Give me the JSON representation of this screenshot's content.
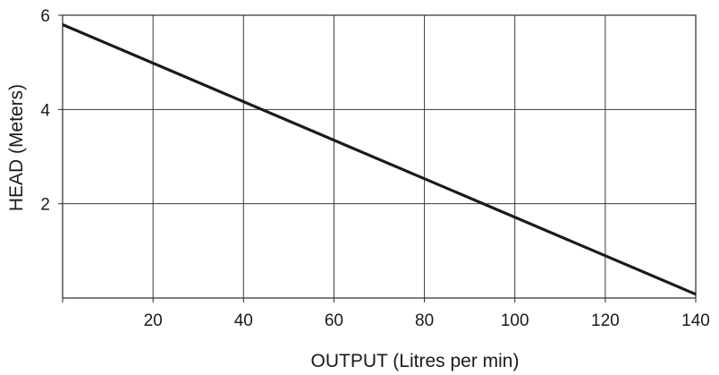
{
  "chart_data": {
    "type": "line",
    "title": "",
    "xlabel": "OUTPUT (Litres per min)",
    "ylabel": "HEAD (Meters)",
    "xlim": [
      0,
      140
    ],
    "ylim": [
      0,
      6
    ],
    "x_ticks": [
      20,
      40,
      60,
      80,
      100,
      120,
      140
    ],
    "y_ticks": [
      2,
      4,
      6
    ],
    "grid": true,
    "series": [
      {
        "color": "#1a1a1a",
        "points": [
          [
            0,
            5.8
          ],
          [
            140,
            0.08
          ]
        ]
      }
    ]
  }
}
